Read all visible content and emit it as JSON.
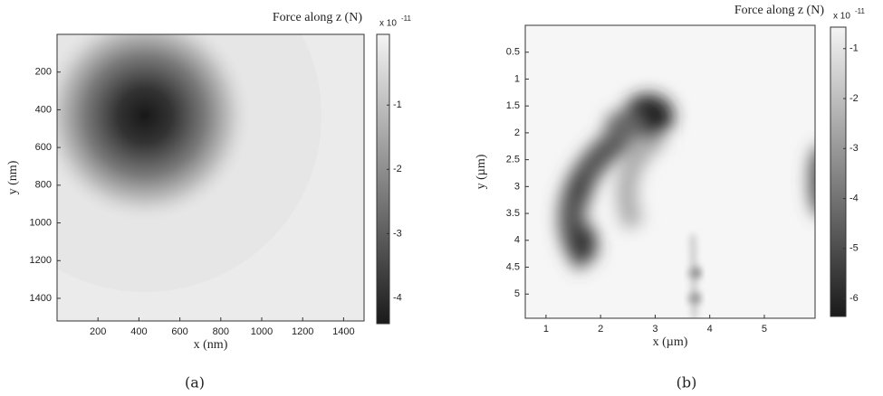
{
  "chart_data": [
    {
      "type": "heatmap",
      "title": "Force along z (N)",
      "xlabel": "x (nm)",
      "ylabel": "y (nm)",
      "caption": "(a)",
      "xlim": [
        0,
        1500
      ],
      "xticks": [
        200,
        400,
        600,
        800,
        1000,
        1200,
        1400
      ],
      "ylim": [
        0,
        1520
      ],
      "yticks": [
        200,
        400,
        600,
        800,
        1000,
        1200,
        1400
      ],
      "y_reversed": true,
      "colorbar": {
        "lim": [
          -4.4,
          0.1
        ],
        "ticks": [
          -1,
          -2,
          -3,
          -4
        ],
        "multiplier": "x 10",
        "exponent": "-11",
        "colors": [
          "#1a1a1a",
          "#f4f4f4"
        ]
      }
    },
    {
      "type": "heatmap",
      "title": "Force along z (N)",
      "xlabel": "x (µm)",
      "ylabel": "y (µm)",
      "caption": "(b)",
      "xlim": [
        0.62,
        5.93
      ],
      "xticks": [
        1,
        2,
        3,
        4,
        5
      ],
      "ylim": [
        0,
        5.45
      ],
      "yticks": [
        0.5,
        1,
        1.5,
        2,
        2.5,
        3,
        3.5,
        4,
        4.5,
        5
      ],
      "y_reversed": true,
      "colorbar": {
        "lim": [
          -6.36,
          -0.57
        ],
        "ticks": [
          -1,
          -2,
          -3,
          -4,
          -5,
          -6
        ],
        "multiplier": "x 10",
        "exponent": "-11",
        "colors": [
          "#1a1a1a",
          "#f4f4f4"
        ]
      }
    }
  ]
}
